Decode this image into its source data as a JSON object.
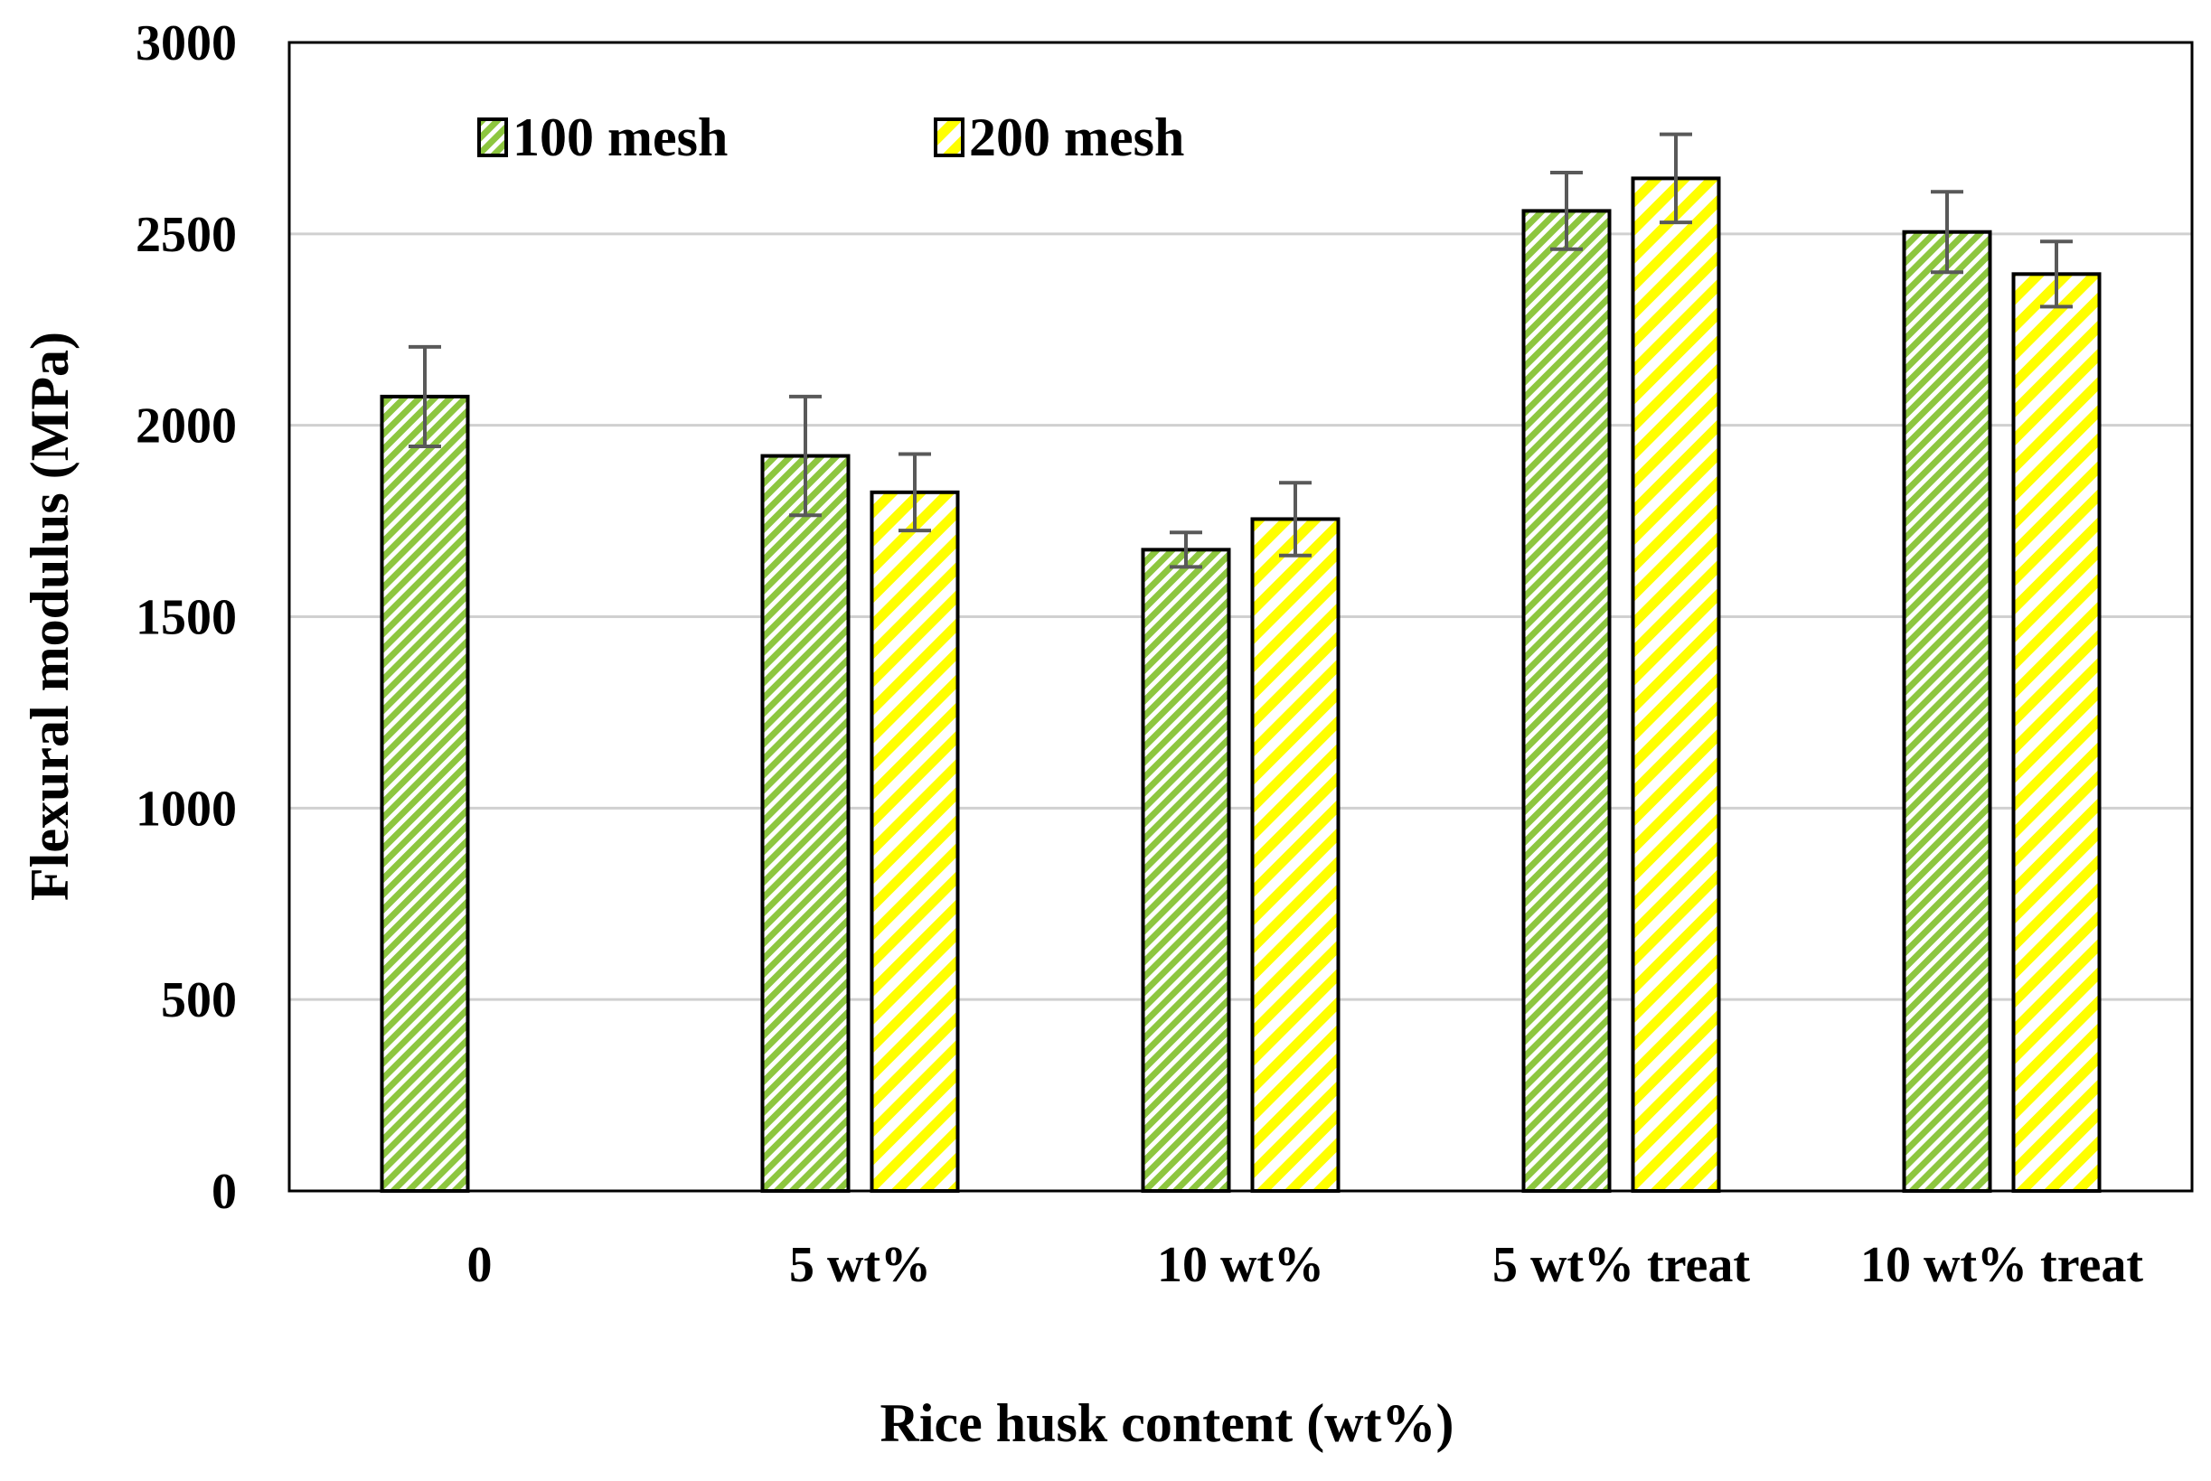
{
  "chart_data": {
    "type": "bar",
    "title": "",
    "xlabel": "Rice husk content (wt%)",
    "ylabel": "Flexural modulus (MPa)",
    "ylim": [
      0,
      3000
    ],
    "yticks": [
      0,
      500,
      1000,
      1500,
      2000,
      2500,
      3000
    ],
    "grid": "horizontal",
    "legend_position": "top-left",
    "categories": [
      "0",
      "5 wt%",
      "10 wt%",
      "5 wt% treat",
      "10 wt% treat"
    ],
    "series": [
      {
        "name": "100 mesh",
        "color": "#8dc63f",
        "pattern": "diagonal-hatch",
        "values": [
          2075,
          1920,
          1675,
          2560,
          2505
        ],
        "errors": [
          130,
          155,
          45,
          100,
          105
        ]
      },
      {
        "name": "200 mesh",
        "color": "#ffff00",
        "pattern": "diagonal-hatch",
        "values": [
          null,
          1825,
          1755,
          2645,
          2395
        ],
        "errors": [
          null,
          100,
          95,
          115,
          85
        ]
      }
    ]
  }
}
